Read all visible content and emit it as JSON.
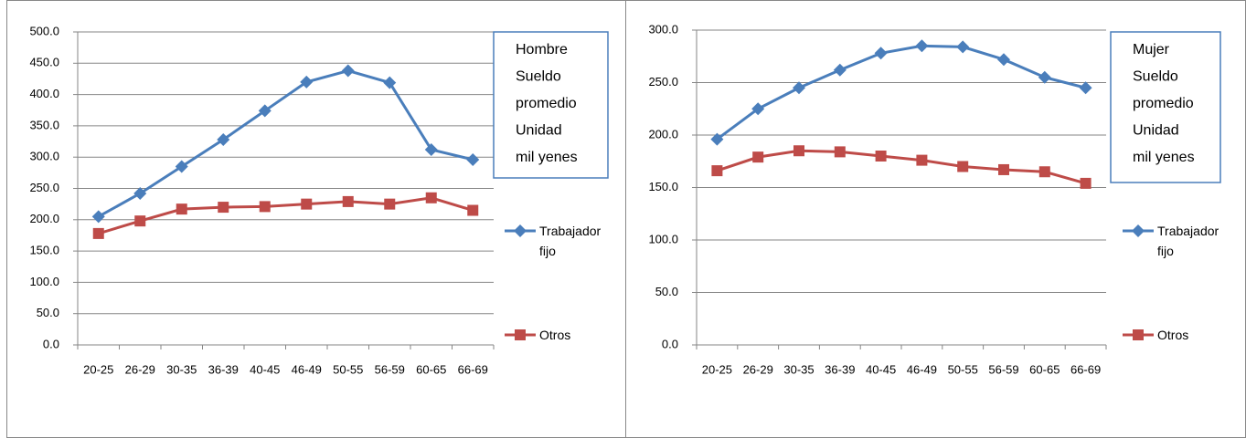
{
  "chart_data": [
    {
      "type": "line",
      "annotation": [
        "Hombre",
        "Sueldo",
        "promedio",
        "Unidad",
        "mil yenes"
      ],
      "categories": [
        "20-25",
        "26-29",
        "30-35",
        "36-39",
        "40-45",
        "46-49",
        "50-55",
        "56-59",
        "60-65",
        "66-69"
      ],
      "series": [
        {
          "name": "Trabajador fijo",
          "color": "#4a7ebb",
          "marker": "diamond",
          "values": [
            205,
            242,
            285,
            328,
            374,
            420,
            438,
            419,
            312,
            296
          ]
        },
        {
          "name": "Otros",
          "color": "#be4b48",
          "marker": "square",
          "values": [
            178,
            198,
            217,
            220,
            221,
            225,
            229,
            225,
            235,
            215
          ]
        }
      ],
      "ylim": [
        0,
        500
      ],
      "yticks": [
        {
          "value": 0,
          "label": "0.0"
        },
        {
          "value": 50,
          "label": "50.0"
        },
        {
          "value": 100,
          "label": "100.0"
        },
        {
          "value": 150,
          "label": "150.0"
        },
        {
          "value": 200,
          "label": "200.0"
        },
        {
          "value": 250,
          "label": "250.0"
        },
        {
          "value": 300,
          "label": "300.0"
        },
        {
          "value": 350,
          "label": "350.0"
        },
        {
          "value": 400,
          "label": "400.0"
        },
        {
          "value": 450,
          "label": "450.0"
        },
        {
          "value": 500,
          "label": "500.0"
        }
      ],
      "grid": true,
      "legend": "right"
    },
    {
      "type": "line",
      "annotation": [
        "Mujer",
        "Sueldo",
        "promedio",
        "Unidad",
        "mil yenes"
      ],
      "categories": [
        "20-25",
        "26-29",
        "30-35",
        "36-39",
        "40-45",
        "46-49",
        "50-55",
        "56-59",
        "60-65",
        "66-69"
      ],
      "series": [
        {
          "name": "Trabajador fijo",
          "color": "#4a7ebb",
          "marker": "diamond",
          "values": [
            196,
            225,
            245,
            262,
            278,
            285,
            284,
            272,
            255,
            245
          ]
        },
        {
          "name": "Otros",
          "color": "#be4b48",
          "marker": "square",
          "values": [
            166,
            179,
            185,
            184,
            180,
            176,
            170,
            167,
            165,
            154
          ]
        }
      ],
      "ylim": [
        0,
        300
      ],
      "yticks": [
        {
          "value": 0,
          "label": "0.0"
        },
        {
          "value": 50,
          "label": "50.0"
        },
        {
          "value": 100,
          "label": "100.0"
        },
        {
          "value": 150,
          "label": "150.0"
        },
        {
          "value": 200,
          "label": "200.0"
        },
        {
          "value": 250,
          "label": "250.0"
        },
        {
          "value": 300,
          "label": "300.0"
        }
      ],
      "grid": true,
      "legend": "right"
    }
  ]
}
